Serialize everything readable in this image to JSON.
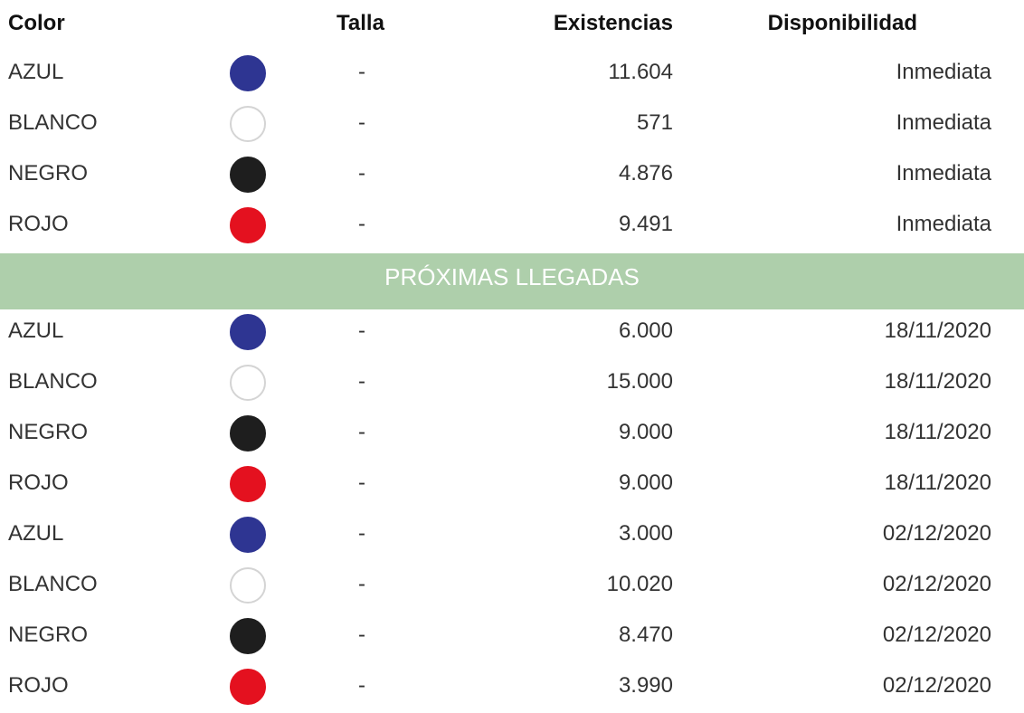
{
  "colors": {
    "AZUL": "#2e3592",
    "BLANCO": "#ffffff",
    "NEGRO": "#1e1e1e",
    "ROJO": "#e4111f",
    "banner_bg": "#aecfab",
    "swatch_border": "#d4d4d4"
  },
  "header": {
    "color": "Color",
    "talla": "Talla",
    "existencias": "Existencias",
    "disponibilidad": "Disponibilidad"
  },
  "stock_rows": [
    {
      "color": "AZUL",
      "talla": "-",
      "existencias": "11.604",
      "disponibilidad": "Inmediata"
    },
    {
      "color": "BLANCO",
      "talla": "-",
      "existencias": "571",
      "disponibilidad": "Inmediata"
    },
    {
      "color": "NEGRO",
      "talla": "-",
      "existencias": "4.876",
      "disponibilidad": "Inmediata"
    },
    {
      "color": "ROJO",
      "talla": "-",
      "existencias": "9.491",
      "disponibilidad": "Inmediata"
    }
  ],
  "banner": {
    "label": "PRÓXIMAS LLEGADAS"
  },
  "incoming_rows": [
    {
      "color": "AZUL",
      "talla": "-",
      "existencias": "6.000",
      "disponibilidad": "18/11/2020"
    },
    {
      "color": "BLANCO",
      "talla": "-",
      "existencias": "15.000",
      "disponibilidad": "18/11/2020"
    },
    {
      "color": "NEGRO",
      "talla": "-",
      "existencias": "9.000",
      "disponibilidad": "18/11/2020"
    },
    {
      "color": "ROJO",
      "talla": "-",
      "existencias": "9.000",
      "disponibilidad": "18/11/2020"
    },
    {
      "color": "AZUL",
      "talla": "-",
      "existencias": "3.000",
      "disponibilidad": "02/12/2020"
    },
    {
      "color": "BLANCO",
      "talla": "-",
      "existencias": "10.020",
      "disponibilidad": "02/12/2020"
    },
    {
      "color": "NEGRO",
      "talla": "-",
      "existencias": "8.470",
      "disponibilidad": "02/12/2020"
    },
    {
      "color": "ROJO",
      "talla": "-",
      "existencias": "3.990",
      "disponibilidad": "02/12/2020"
    }
  ]
}
